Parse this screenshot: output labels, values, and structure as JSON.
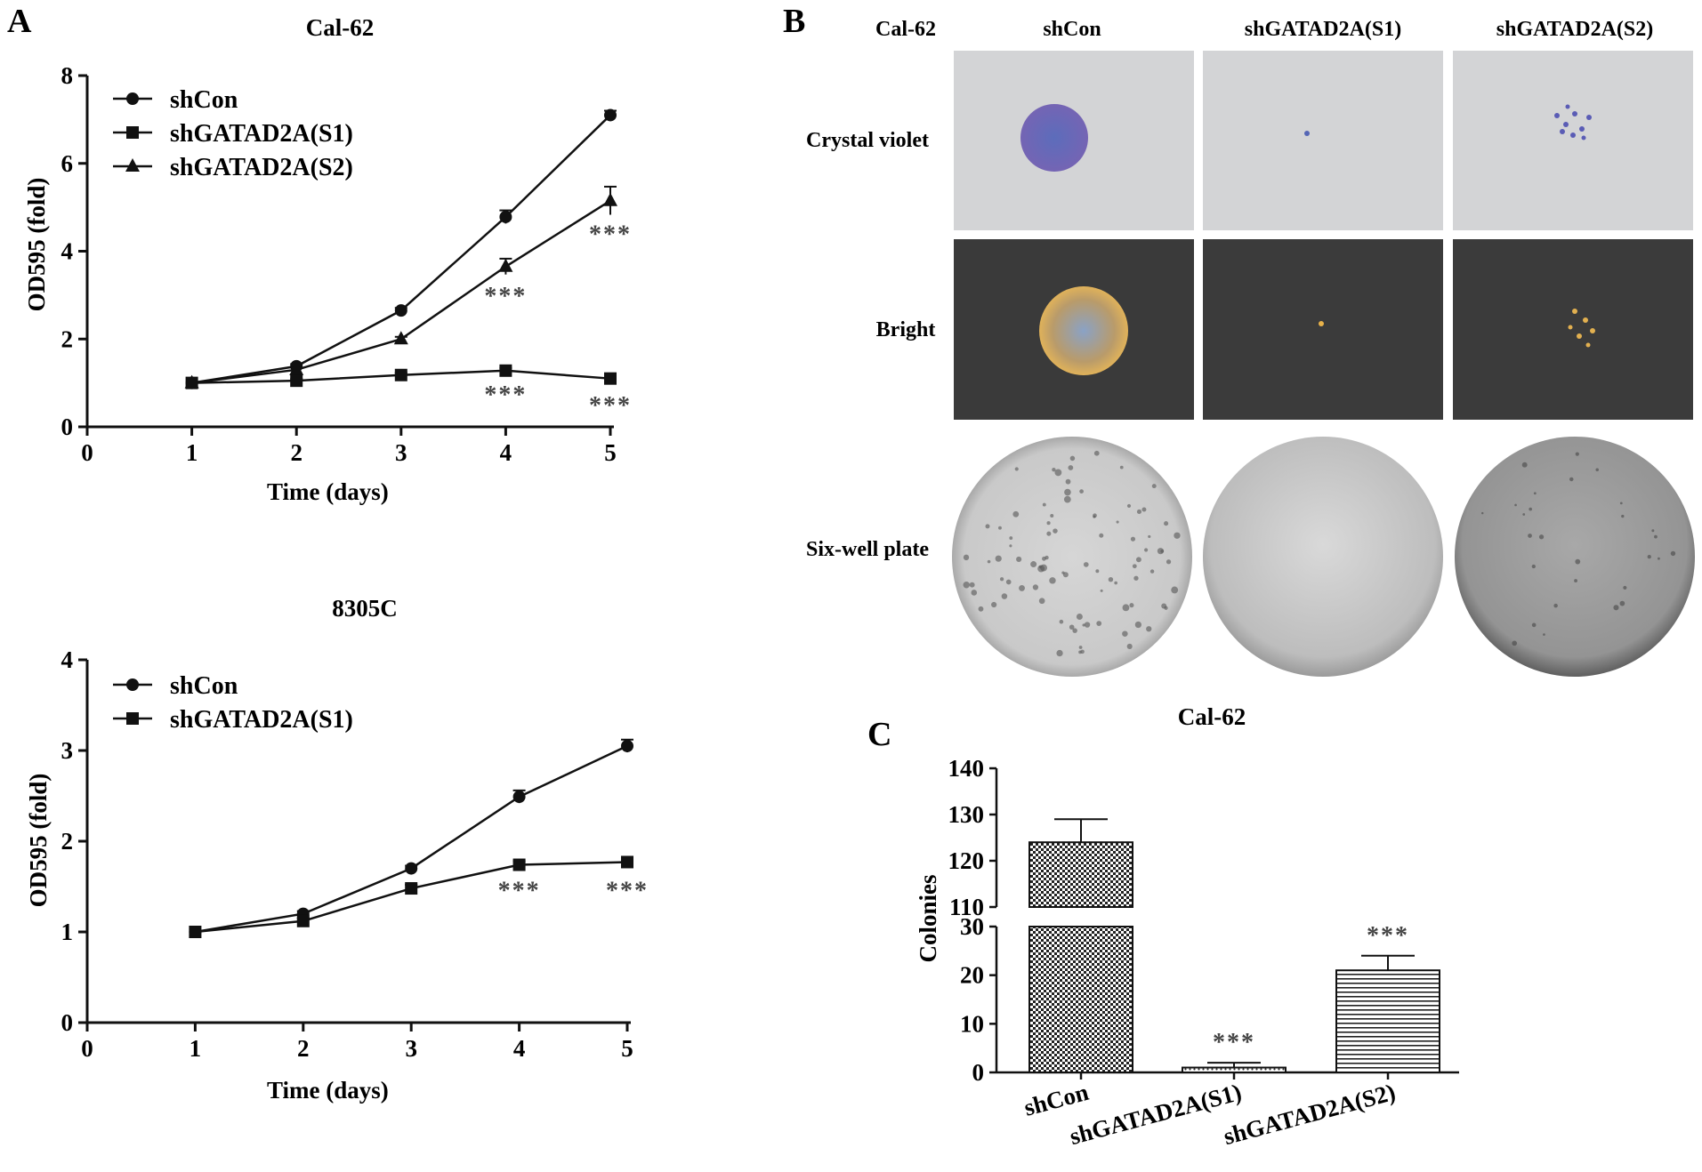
{
  "panels": {
    "a": {
      "letter": "A"
    },
    "b": {
      "letter": "B"
    },
    "c": {
      "letter": "C"
    }
  },
  "chart_data": [
    {
      "type": "line",
      "title": "Cal-62",
      "xlabel": "Time (days)",
      "ylabel": "OD595 (fold)",
      "xlim": [
        0,
        5
      ],
      "ylim": [
        0,
        8
      ],
      "xticks": [
        "0",
        "1",
        "2",
        "3",
        "4",
        "5"
      ],
      "yticks": [
        "0",
        "2",
        "4",
        "6",
        "8"
      ],
      "x": [
        1,
        2,
        3,
        4,
        5
      ],
      "legend_position": "top-left",
      "series": [
        {
          "name": "shCon",
          "marker": "circle",
          "values": [
            1.0,
            1.38,
            2.65,
            4.78,
            7.1
          ],
          "errors": [
            0,
            0.05,
            0.06,
            0.15,
            0.1
          ]
        },
        {
          "name": "shGATAD2A(S1)",
          "marker": "square",
          "values": [
            1.0,
            1.05,
            1.18,
            1.28,
            1.1
          ],
          "errors": [
            0,
            0.04,
            0.05,
            0.06,
            0.05
          ]
        },
        {
          "name": "shGATAD2A(S2)",
          "marker": "triangle",
          "values": [
            1.0,
            1.3,
            2.0,
            3.65,
            5.15
          ],
          "errors": [
            0,
            0.05,
            0.05,
            0.18,
            0.32
          ]
        }
      ],
      "annotations": [
        {
          "x": 4,
          "y": 2.8,
          "text": "***"
        },
        {
          "x": 5,
          "y": 4.2,
          "text": "***"
        },
        {
          "x": 4,
          "y": 0.55,
          "text": "***"
        },
        {
          "x": 5,
          "y": 0.3,
          "text": "***"
        }
      ]
    },
    {
      "type": "line",
      "title": "8305C",
      "xlabel": "Time (days)",
      "ylabel": "OD595 (fold)",
      "xlim": [
        0,
        5
      ],
      "ylim": [
        0,
        4
      ],
      "xticks": [
        "0",
        "1",
        "2",
        "3",
        "4",
        "5"
      ],
      "yticks": [
        "0",
        "1",
        "2",
        "3",
        "4"
      ],
      "x": [
        1,
        2,
        3,
        4,
        5
      ],
      "legend_position": "top-left",
      "series": [
        {
          "name": "shCon",
          "marker": "circle",
          "values": [
            1.0,
            1.2,
            1.7,
            2.49,
            3.05
          ],
          "errors": [
            0,
            0.03,
            0.03,
            0.07,
            0.07
          ]
        },
        {
          "name": "shGATAD2A(S1)",
          "marker": "square",
          "values": [
            1.0,
            1.12,
            1.48,
            1.74,
            1.77
          ],
          "errors": [
            0,
            0.03,
            0.04,
            0.04,
            0.04
          ]
        }
      ],
      "annotations": [
        {
          "x": 4,
          "y": 1.37,
          "text": "***"
        },
        {
          "x": 5,
          "y": 1.37,
          "text": "***"
        }
      ]
    },
    {
      "type": "bar",
      "title": "Cal-62",
      "xlabel": "",
      "ylabel": "Colonies",
      "categories": [
        "shCon",
        "shGATAD2A(S1)",
        "shGATAD2A(S2)"
      ],
      "values": [
        124,
        1,
        21
      ],
      "errors": [
        5,
        1,
        3
      ],
      "broken_axis": {
        "lower": [
          0,
          30
        ],
        "upper": [
          110,
          140
        ]
      },
      "yticks_lower": [
        "0",
        "10",
        "20",
        "30"
      ],
      "yticks_upper": [
        "110",
        "120",
        "130",
        "140"
      ],
      "patterns": [
        "checker",
        "dots",
        "horizontal-lines"
      ],
      "annotations": [
        "",
        "***",
        "***"
      ]
    }
  ],
  "image_grid": {
    "cell_line": "Cal-62",
    "columns": [
      "shCon",
      "shGATAD2A(S1)",
      "shGATAD2A(S2)"
    ],
    "rows": [
      "Crystal violet",
      "Bright",
      "Six-well plate"
    ]
  }
}
